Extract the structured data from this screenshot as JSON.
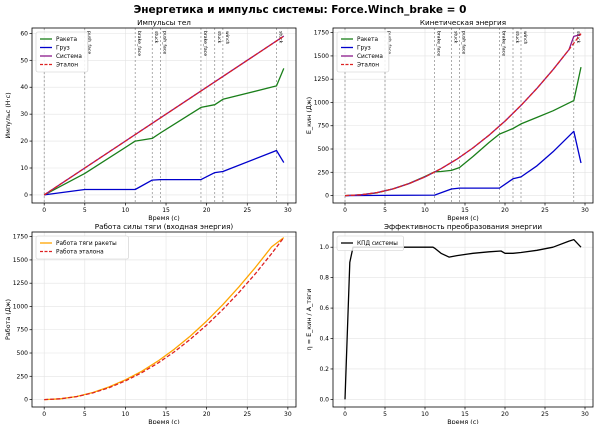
{
  "suptitle": "Энергетика и импульс системы: Force.Winch_brake = 0",
  "chart_data": [
    {
      "type": "line",
      "title": "Импульсы тел",
      "xlabel": "Время (с)",
      "ylabel": "Импульс (Н·с)",
      "xlim": [
        -1.5,
        31
      ],
      "ylim": [
        -3,
        62
      ],
      "xticks": [
        0,
        5,
        10,
        15,
        20,
        25,
        30
      ],
      "yticks": [
        0,
        10,
        20,
        30,
        40,
        50,
        60
      ],
      "legend_position": "top-left",
      "events": [
        {
          "t": 0,
          "label": ""
        },
        {
          "t": 5,
          "label": "push_face"
        },
        {
          "t": 11.2,
          "label": "brake_face"
        },
        {
          "t": 13.3,
          "label": "stuck"
        },
        {
          "t": 14.3,
          "label": "push_face"
        },
        {
          "t": 19.3,
          "label": "brake_face"
        },
        {
          "t": 21,
          "label": "stuck"
        },
        {
          "t": 22,
          "label": "winch"
        },
        {
          "t": 28.6,
          "label": "stuck"
        }
      ],
      "series": [
        {
          "name": "Ракета",
          "color": "#1a7f1a",
          "dash": false,
          "x": [
            0,
            5,
            11.2,
            13.3,
            14.3,
            19.3,
            21,
            22,
            28.6,
            29.5
          ],
          "y": [
            0,
            8,
            20,
            21,
            23,
            32.5,
            33.5,
            35.5,
            40.5,
            47
          ]
        },
        {
          "name": "Груз",
          "color": "#0000cc",
          "dash": false,
          "x": [
            0,
            5,
            11.2,
            13.3,
            14.3,
            19.3,
            21,
            22,
            28.6,
            29.5
          ],
          "y": [
            0,
            2,
            2,
            5.5,
            5.7,
            5.7,
            8.3,
            8.7,
            16.5,
            12
          ]
        },
        {
          "name": "Система",
          "color": "#8b1a8b",
          "dash": false,
          "x": [
            0,
            29.5
          ],
          "y": [
            0,
            59
          ]
        },
        {
          "name": "Эталон",
          "color": "#dd2222",
          "dash": true,
          "x": [
            0,
            29.5
          ],
          "y": [
            0,
            59
          ]
        }
      ]
    },
    {
      "type": "line",
      "title": "Кинетическая энергия",
      "xlabel": "Время (с)",
      "ylabel": "E_кин (Дж)",
      "xlim": [
        -1.5,
        31
      ],
      "ylim": [
        -80,
        1800
      ],
      "xticks": [
        0,
        5,
        10,
        15,
        20,
        25,
        30
      ],
      "yticks": [
        0,
        250,
        500,
        750,
        1000,
        1250,
        1500,
        1750
      ],
      "legend_position": "top-left",
      "events": [
        {
          "t": 0,
          "label": ""
        },
        {
          "t": 5,
          "label": "push_face"
        },
        {
          "t": 11.2,
          "label": "brake_face"
        },
        {
          "t": 13.3,
          "label": "stuck"
        },
        {
          "t": 14.3,
          "label": "push_face"
        },
        {
          "t": 19.3,
          "label": "brake_face"
        },
        {
          "t": 21,
          "label": "stuck"
        },
        {
          "t": 22,
          "label": "winch"
        },
        {
          "t": 28.6,
          "label": "stuck"
        }
      ],
      "series": [
        {
          "name": "Ракета",
          "color": "#1a7f1a",
          "dash": false,
          "x": [
            0,
            2,
            4,
            6,
            8,
            10,
            11.2,
            12,
            13.3,
            14.3,
            16,
            18,
            19.3,
            21,
            22,
            24,
            26,
            28.6,
            29.5
          ],
          "y": [
            0,
            8,
            30,
            72,
            130,
            205,
            255,
            258,
            270,
            300,
            420,
            570,
            660,
            720,
            770,
            840,
            910,
            1020,
            1380
          ]
        },
        {
          "name": "Груз",
          "color": "#0000cc",
          "dash": false,
          "x": [
            0,
            11.2,
            13.3,
            14.3,
            19.3,
            21,
            22,
            24,
            26,
            28.6,
            29.5
          ],
          "y": [
            0,
            5,
            70,
            80,
            80,
            180,
            200,
            320,
            470,
            690,
            350
          ]
        },
        {
          "name": "Система",
          "color": "#8b1a8b",
          "dash": false,
          "x": [
            0,
            2,
            4,
            6,
            8,
            10,
            12,
            14,
            16,
            18,
            20,
            22,
            24,
            26,
            28,
            28.6,
            29.5
          ],
          "y": [
            0,
            8,
            32,
            72,
            128,
            200,
            288,
            392,
            512,
            648,
            800,
            968,
            1152,
            1352,
            1568,
            1710,
            1730
          ]
        },
        {
          "name": "Эталон",
          "color": "#dd2222",
          "dash": true,
          "x": [
            0,
            2,
            4,
            6,
            8,
            10,
            12,
            14,
            16,
            18,
            20,
            22,
            24,
            26,
            28,
            29.5
          ],
          "y": [
            0,
            8,
            32,
            72,
            128,
            200,
            288,
            392,
            512,
            648,
            800,
            968,
            1152,
            1352,
            1568,
            1740
          ]
        }
      ]
    },
    {
      "type": "line",
      "title": "Работа силы тяги (входная энергия)",
      "xlabel": "Время (с)",
      "ylabel": "Работа (Дж)",
      "xlim": [
        -1.5,
        31
      ],
      "ylim": [
        -80,
        1800
      ],
      "xticks": [
        0,
        5,
        10,
        15,
        20,
        25,
        30
      ],
      "yticks": [
        0,
        250,
        500,
        750,
        1000,
        1250,
        1500,
        1750
      ],
      "legend_position": "top-left",
      "events": [],
      "series": [
        {
          "name": "Работа тяги ракеты",
          "color": "#ffa500",
          "dash": false,
          "x": [
            0,
            2,
            4,
            6,
            8,
            10,
            12,
            14,
            16,
            18,
            20,
            22,
            24,
            26,
            28,
            29.5
          ],
          "y": [
            0,
            8,
            33,
            76,
            136,
            212,
            304,
            413,
            540,
            683,
            843,
            1020,
            1212,
            1420,
            1640,
            1740
          ]
        },
        {
          "name": "Работа эталона",
          "color": "#dd2222",
          "dash": true,
          "x": [
            0,
            2,
            4,
            6,
            8,
            10,
            12,
            14,
            16,
            18,
            20,
            22,
            24,
            26,
            28,
            29.5
          ],
          "y": [
            0,
            8,
            32,
            72,
            128,
            200,
            288,
            392,
            512,
            648,
            800,
            968,
            1152,
            1352,
            1568,
            1740
          ]
        }
      ]
    },
    {
      "type": "line",
      "title": "Эффективность преобразования энергии",
      "xlabel": "Время (с)",
      "ylabel": "η = E_кин / A_тяги",
      "xlim": [
        -1.5,
        31
      ],
      "ylim": [
        -0.05,
        1.1
      ],
      "xticks": [
        0,
        5,
        10,
        15,
        20,
        25,
        30
      ],
      "yticks": [
        0.0,
        0.2,
        0.4,
        0.6,
        0.8,
        1.0
      ],
      "legend_position": "top-left",
      "events": [],
      "series": [
        {
          "name": "КПД системы",
          "color": "#000000",
          "dash": false,
          "x": [
            0,
            0.6,
            1,
            5,
            11,
            11.3,
            12,
            13,
            14,
            16,
            18,
            19.5,
            20,
            21,
            22,
            24,
            26,
            28,
            28.6,
            29.5
          ],
          "y": [
            0,
            0.9,
            1.0,
            1.0,
            1.0,
            0.99,
            0.96,
            0.935,
            0.945,
            0.96,
            0.97,
            0.975,
            0.96,
            0.96,
            0.965,
            0.98,
            1.0,
            1.04,
            1.05,
            1.0
          ]
        }
      ]
    }
  ]
}
